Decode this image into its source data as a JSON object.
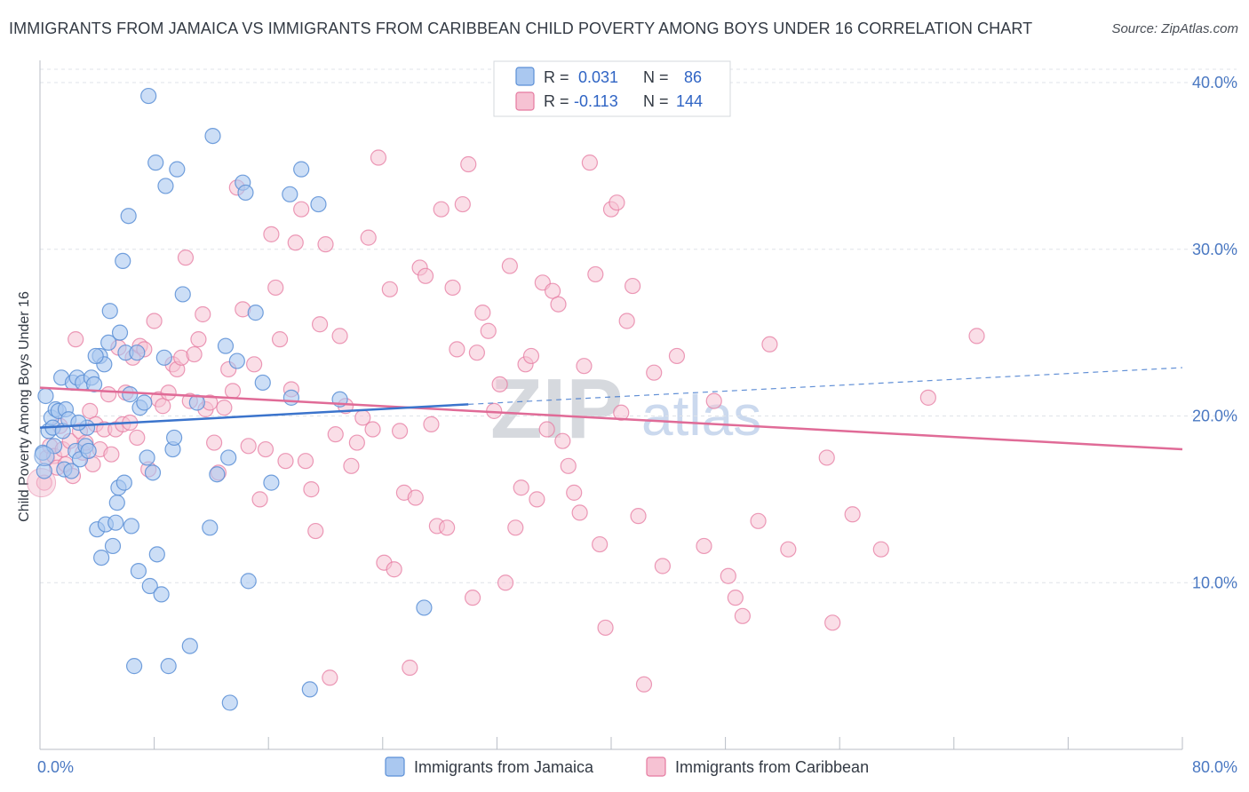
{
  "title": "IMMIGRANTS FROM JAMAICA VS IMMIGRANTS FROM CARIBBEAN CHILD POVERTY AMONG BOYS UNDER 16 CORRELATION CHART",
  "source": "Source: ZipAtlas.com",
  "watermark": {
    "zip": "ZIP",
    "atlas": "atlas"
  },
  "legend": {
    "r_label": "R =",
    "n_label": "N =",
    "rows": [
      {
        "r": "0.031",
        "n": "86",
        "color": "#5b8fd6"
      },
      {
        "r": "-0.113",
        "n": "144",
        "color": "#e57aa0"
      }
    ]
  },
  "colors": {
    "jamaica_fill": "#aac8f0",
    "jamaica_stroke": "#5b8fd6",
    "jamaica_line": "#3b74cc",
    "caribbean_fill": "#f6c2d3",
    "caribbean_stroke": "#e57aa0",
    "caribbean_line": "#e06b97",
    "grid": "#dfe3e8",
    "tick_label": "#4a78c2"
  },
  "chart_data": {
    "type": "scatter",
    "title": "IMMIGRANTS FROM JAMAICA VS IMMIGRANTS FROM CARIBBEAN CHILD POVERTY AMONG BOYS UNDER 16 CORRELATION CHART",
    "xlabel": "",
    "ylabel": "Child Poverty Among Boys Under 16",
    "xlim": [
      0,
      80
    ],
    "ylim": [
      0,
      40.8
    ],
    "x_ticks": [
      0,
      8,
      16,
      24,
      32,
      40,
      48,
      56,
      64,
      72,
      80
    ],
    "x_tick_labels": [
      "0.0%",
      "80.0%"
    ],
    "y_ticks": [
      10,
      20,
      30,
      40
    ],
    "y_tick_labels": [
      "10.0%",
      "20.0%",
      "30.0%",
      "40.0%"
    ],
    "legend_position": "top-center",
    "series": [
      {
        "name": "Immigrants from Jamaica",
        "r": 0.031,
        "n": 86,
        "trend": {
          "x0": 0,
          "y0": 19.3,
          "x1": 30,
          "y1": 20.7,
          "dashed_to_x": 80,
          "dashed_to_y": 22.9
        },
        "points": [
          [
            0.2,
            17.8
          ],
          [
            0.3,
            16.7
          ],
          [
            0.4,
            21.2
          ],
          [
            0.6,
            19.1
          ],
          [
            0.8,
            19.9
          ],
          [
            0.9,
            19.3
          ],
          [
            1.1,
            20.4
          ],
          [
            1.3,
            20.3
          ],
          [
            1.5,
            22.3
          ],
          [
            1.6,
            19.1
          ],
          [
            1.7,
            16.8
          ],
          [
            1.8,
            20.4
          ],
          [
            2.0,
            19.8
          ],
          [
            2.2,
            16.7
          ],
          [
            2.3,
            22.0
          ],
          [
            2.5,
            17.9
          ],
          [
            2.6,
            22.3
          ],
          [
            2.8,
            17.4
          ],
          [
            3.0,
            22.0
          ],
          [
            3.2,
            18.2
          ],
          [
            3.3,
            19.3
          ],
          [
            3.4,
            17.9
          ],
          [
            3.6,
            22.3
          ],
          [
            3.8,
            21.9
          ],
          [
            4.0,
            13.2
          ],
          [
            4.2,
            23.6
          ],
          [
            4.3,
            11.5
          ],
          [
            4.5,
            23.1
          ],
          [
            4.6,
            13.5
          ],
          [
            4.8,
            24.4
          ],
          [
            4.9,
            26.3
          ],
          [
            5.1,
            12.2
          ],
          [
            5.3,
            13.6
          ],
          [
            5.4,
            14.8
          ],
          [
            5.5,
            15.7
          ],
          [
            5.6,
            25.0
          ],
          [
            5.8,
            29.3
          ],
          [
            5.9,
            16.0
          ],
          [
            6.0,
            23.8
          ],
          [
            6.2,
            32.0
          ],
          [
            6.3,
            21.3
          ],
          [
            6.4,
            13.4
          ],
          [
            6.6,
            5.0
          ],
          [
            6.8,
            23.8
          ],
          [
            6.9,
            10.7
          ],
          [
            7.0,
            20.5
          ],
          [
            7.3,
            20.8
          ],
          [
            7.5,
            17.5
          ],
          [
            7.6,
            39.2
          ],
          [
            7.7,
            9.8
          ],
          [
            7.9,
            16.6
          ],
          [
            8.1,
            35.2
          ],
          [
            8.2,
            11.7
          ],
          [
            8.5,
            9.3
          ],
          [
            8.7,
            23.5
          ],
          [
            8.8,
            33.8
          ],
          [
            9.0,
            5.0
          ],
          [
            9.3,
            18.0
          ],
          [
            9.4,
            18.7
          ],
          [
            9.6,
            34.8
          ],
          [
            10.0,
            27.3
          ],
          [
            10.5,
            6.2
          ],
          [
            11.0,
            20.8
          ],
          [
            11.9,
            13.3
          ],
          [
            12.1,
            36.8
          ],
          [
            12.4,
            16.5
          ],
          [
            13.0,
            24.2
          ],
          [
            13.2,
            17.5
          ],
          [
            13.3,
            2.8
          ],
          [
            13.8,
            23.3
          ],
          [
            14.2,
            34.0
          ],
          [
            14.4,
            33.4
          ],
          [
            14.6,
            10.1
          ],
          [
            15.1,
            26.2
          ],
          [
            15.6,
            22.0
          ],
          [
            16.2,
            16.0
          ],
          [
            17.5,
            33.3
          ],
          [
            17.6,
            21.1
          ],
          [
            18.3,
            34.8
          ],
          [
            18.9,
            3.6
          ],
          [
            19.5,
            32.7
          ],
          [
            21.0,
            21.0
          ],
          [
            26.9,
            8.5
          ],
          [
            1.0,
            18.2
          ],
          [
            2.7,
            19.6
          ],
          [
            3.9,
            23.6
          ]
        ]
      },
      {
        "name": "Immigrants from Caribbean",
        "r": -0.113,
        "n": 144,
        "trend": {
          "x0": 0,
          "y0": 21.7,
          "x1": 80,
          "y1": 18.0
        },
        "points": [
          [
            0.3,
            16.0
          ],
          [
            0.5,
            17.5
          ],
          [
            0.7,
            18.2
          ],
          [
            1.0,
            17.6
          ],
          [
            1.2,
            16.9
          ],
          [
            1.4,
            19.4
          ],
          [
            1.6,
            18.0
          ],
          [
            1.8,
            17.1
          ],
          [
            2.1,
            18.5
          ],
          [
            2.3,
            16.4
          ],
          [
            2.5,
            24.6
          ],
          [
            2.8,
            19.1
          ],
          [
            3.0,
            17.8
          ],
          [
            3.2,
            18.4
          ],
          [
            3.5,
            20.3
          ],
          [
            3.7,
            17.1
          ],
          [
            3.9,
            19.5
          ],
          [
            4.2,
            18.0
          ],
          [
            4.5,
            19.2
          ],
          [
            4.8,
            21.3
          ],
          [
            5.0,
            17.7
          ],
          [
            5.3,
            19.2
          ],
          [
            5.5,
            24.1
          ],
          [
            5.8,
            19.5
          ],
          [
            6.0,
            21.4
          ],
          [
            6.3,
            19.6
          ],
          [
            6.5,
            23.5
          ],
          [
            6.8,
            18.7
          ],
          [
            7.0,
            24.2
          ],
          [
            7.3,
            24.0
          ],
          [
            7.6,
            16.8
          ],
          [
            8.0,
            25.7
          ],
          [
            8.3,
            21.0
          ],
          [
            8.6,
            20.6
          ],
          [
            9.0,
            21.4
          ],
          [
            9.3,
            23.1
          ],
          [
            9.6,
            22.8
          ],
          [
            9.9,
            23.5
          ],
          [
            10.2,
            29.5
          ],
          [
            10.5,
            20.9
          ],
          [
            10.8,
            23.7
          ],
          [
            11.1,
            24.6
          ],
          [
            11.4,
            26.1
          ],
          [
            11.6,
            20.4
          ],
          [
            11.9,
            20.8
          ],
          [
            12.2,
            18.4
          ],
          [
            12.5,
            16.6
          ],
          [
            12.9,
            20.5
          ],
          [
            13.2,
            22.8
          ],
          [
            13.5,
            21.5
          ],
          [
            13.8,
            33.7
          ],
          [
            14.2,
            26.4
          ],
          [
            14.6,
            18.2
          ],
          [
            15.0,
            23.1
          ],
          [
            15.4,
            15.0
          ],
          [
            15.8,
            18.0
          ],
          [
            16.2,
            30.9
          ],
          [
            16.5,
            27.7
          ],
          [
            16.8,
            24.6
          ],
          [
            17.2,
            17.3
          ],
          [
            17.6,
            21.6
          ],
          [
            17.9,
            30.4
          ],
          [
            18.3,
            32.4
          ],
          [
            18.6,
            17.3
          ],
          [
            19.0,
            15.6
          ],
          [
            19.3,
            13.1
          ],
          [
            19.6,
            25.5
          ],
          [
            20.0,
            30.3
          ],
          [
            20.3,
            4.3
          ],
          [
            20.7,
            18.9
          ],
          [
            21.0,
            24.8
          ],
          [
            21.4,
            20.6
          ],
          [
            21.8,
            17.0
          ],
          [
            22.2,
            18.4
          ],
          [
            22.6,
            19.9
          ],
          [
            23.0,
            30.7
          ],
          [
            23.3,
            19.2
          ],
          [
            23.7,
            35.5
          ],
          [
            24.1,
            11.2
          ],
          [
            24.5,
            27.6
          ],
          [
            24.8,
            10.8
          ],
          [
            25.2,
            19.1
          ],
          [
            25.5,
            15.4
          ],
          [
            25.9,
            4.9
          ],
          [
            26.3,
            15.1
          ],
          [
            26.6,
            28.9
          ],
          [
            27.0,
            28.4
          ],
          [
            27.4,
            19.5
          ],
          [
            27.8,
            13.4
          ],
          [
            28.1,
            32.4
          ],
          [
            28.5,
            13.3
          ],
          [
            28.9,
            27.7
          ],
          [
            29.2,
            24.0
          ],
          [
            29.6,
            32.7
          ],
          [
            30.0,
            35.1
          ],
          [
            30.3,
            9.1
          ],
          [
            30.6,
            23.8
          ],
          [
            31.0,
            26.2
          ],
          [
            31.4,
            25.1
          ],
          [
            31.8,
            20.3
          ],
          [
            32.2,
            21.9
          ],
          [
            32.6,
            10.0
          ],
          [
            32.9,
            29.0
          ],
          [
            33.3,
            13.3
          ],
          [
            33.7,
            15.7
          ],
          [
            34.0,
            23.1
          ],
          [
            34.4,
            23.6
          ],
          [
            34.8,
            15.0
          ],
          [
            35.2,
            28.0
          ],
          [
            35.5,
            19.2
          ],
          [
            35.9,
            27.5
          ],
          [
            36.3,
            26.7
          ],
          [
            36.6,
            18.5
          ],
          [
            37.0,
            17.0
          ],
          [
            37.4,
            15.4
          ],
          [
            37.8,
            14.2
          ],
          [
            38.1,
            23.0
          ],
          [
            38.5,
            35.2
          ],
          [
            38.9,
            28.5
          ],
          [
            39.2,
            12.3
          ],
          [
            39.6,
            7.3
          ],
          [
            40.0,
            32.4
          ],
          [
            40.4,
            32.8
          ],
          [
            40.7,
            20.2
          ],
          [
            41.1,
            25.7
          ],
          [
            41.5,
            27.8
          ],
          [
            41.9,
            14.0
          ],
          [
            42.3,
            3.9
          ],
          [
            43.0,
            22.6
          ],
          [
            43.6,
            11.0
          ],
          [
            44.6,
            23.6
          ],
          [
            46.5,
            12.2
          ],
          [
            47.2,
            20.9
          ],
          [
            48.2,
            10.4
          ],
          [
            48.7,
            9.1
          ],
          [
            49.2,
            8.0
          ],
          [
            50.3,
            13.7
          ],
          [
            51.1,
            24.3
          ],
          [
            52.4,
            12.0
          ],
          [
            55.1,
            17.5
          ],
          [
            55.5,
            7.6
          ],
          [
            56.9,
            14.1
          ],
          [
            58.9,
            12.0
          ],
          [
            62.2,
            21.1
          ],
          [
            65.6,
            24.8
          ]
        ]
      }
    ]
  },
  "bottom_legend": {
    "jamaica": "Immigrants from Jamaica",
    "caribbean": "Immigrants from Caribbean"
  }
}
